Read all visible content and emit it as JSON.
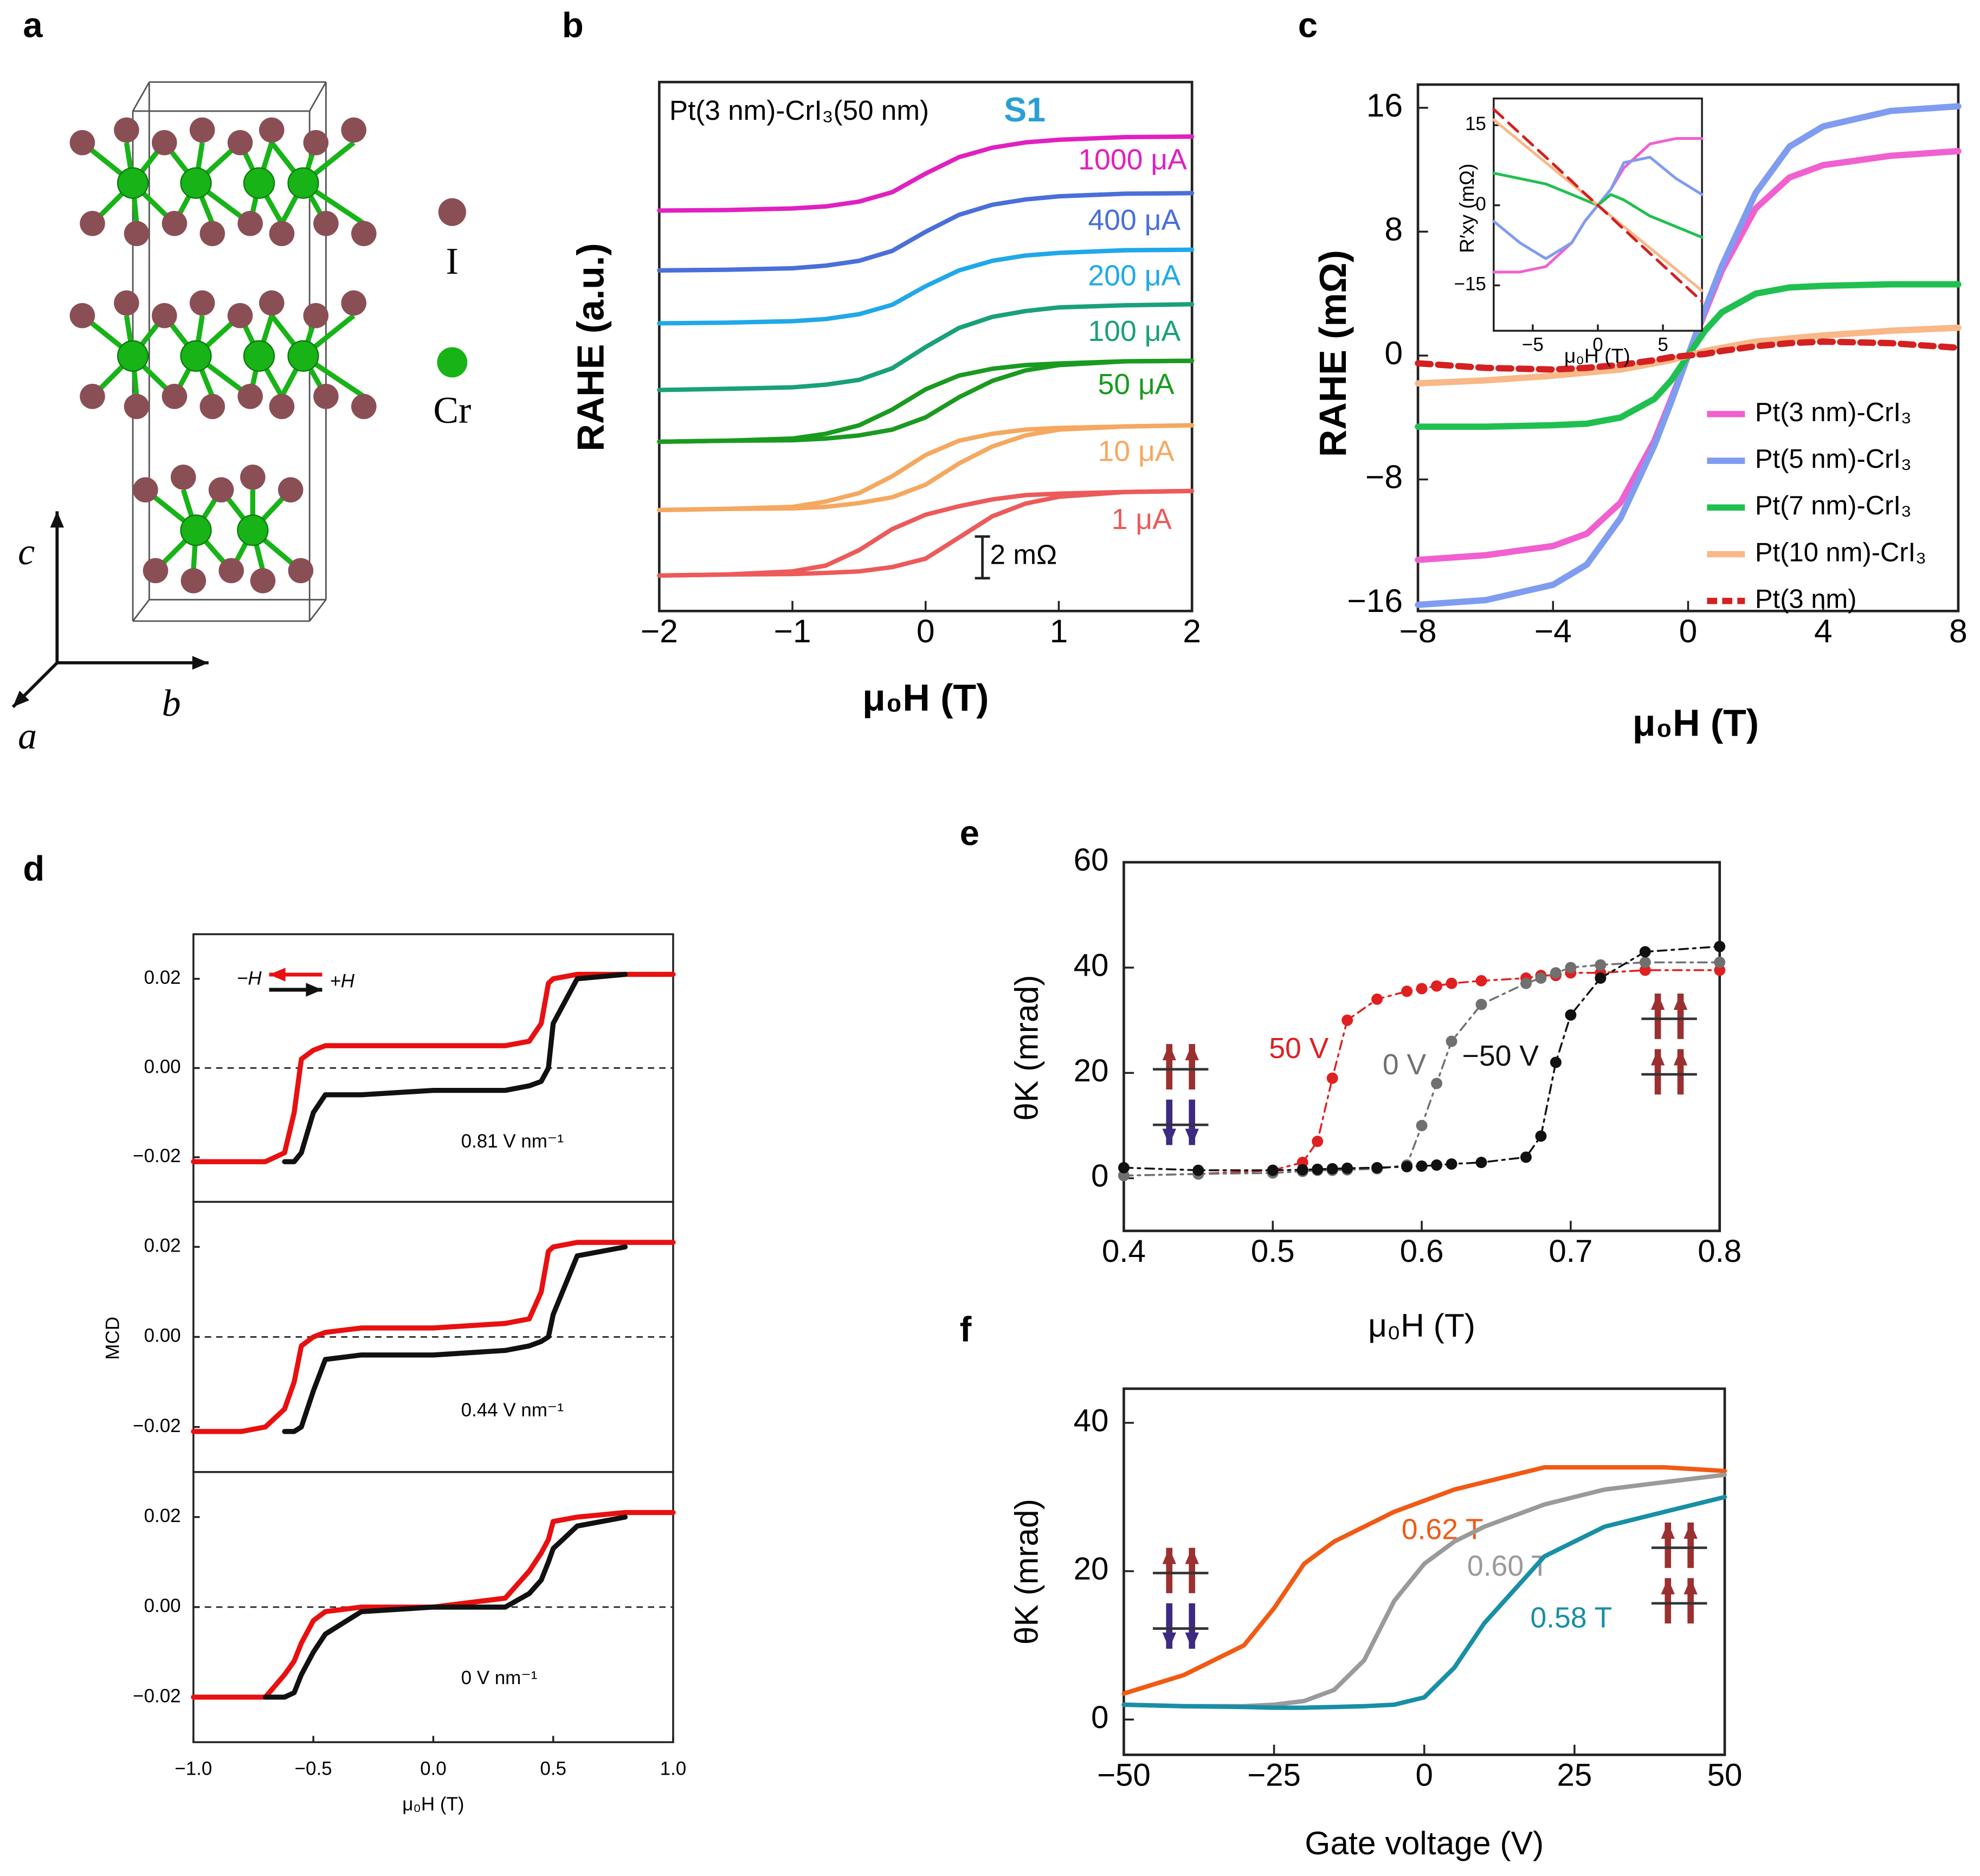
{
  "panel_labels": [
    "a",
    "b",
    "c",
    "d",
    "e",
    "f"
  ],
  "structure": {
    "atom_labels": [
      "I",
      "Cr"
    ],
    "axis_labels": [
      "c",
      "b",
      "a"
    ]
  },
  "chart_data": [
    {
      "type": "line",
      "title": "Pt(3 nm)-CrI₃(50 nm)",
      "sample_label": "S1",
      "sample_color": "#2a9fd6",
      "xlabel": "μ₀H (T)",
      "ylabel": "RAHE (a.u.)",
      "annotations": [
        "2 mΩ"
      ],
      "xlim": [
        -2,
        2
      ],
      "xticks": [
        {
          "value": -2,
          "label": "−2"
        },
        {
          "value": -1,
          "label": "−1"
        },
        0,
        1,
        2
      ],
      "ylim": [
        0,
        100
      ],
      "x": [
        -2,
        -1.5,
        -1,
        -0.75,
        -0.5,
        -0.25,
        0,
        0.25,
        0.5,
        0.75,
        1,
        1.5,
        2
      ],
      "series": [
        {
          "name": "1000 μA",
          "color": "#e020c0",
          "values": [
            75.7,
            75.8,
            76.1,
            76.5,
            77.4,
            79.2,
            82.7,
            85.8,
            87.6,
            88.6,
            89.1,
            89.6,
            89.7
          ]
        },
        {
          "name": "400 μA",
          "color": "#4a6fd8",
          "values": [
            64.4,
            64.5,
            64.8,
            65.3,
            66.2,
            68.1,
            71.7,
            74.9,
            76.8,
            77.8,
            78.4,
            78.9,
            79.0
          ]
        },
        {
          "name": "200 μA",
          "color": "#20a8e8",
          "values": [
            54.4,
            54.5,
            54.8,
            55.2,
            56.1,
            57.9,
            61.4,
            64.4,
            66.2,
            67.2,
            67.7,
            68.2,
            68.3
          ]
        },
        {
          "name": "100 μA",
          "color": "#1aa07a",
          "values": [
            41.8,
            42.0,
            42.3,
            42.8,
            43.7,
            45.9,
            49.9,
            53.5,
            55.6,
            56.7,
            57.4,
            57.8,
            58.0
          ]
        },
        {
          "name": "50 μA",
          "color": "#1a9a20",
          "values": [
            32.0,
            32.2,
            32.3,
            32.6,
            33.2,
            34.3,
            36.6,
            40.4,
            43.5,
            45.5,
            46.5,
            47.2,
            47.3
          ],
          "values_return": [
            32.0,
            32.2,
            32.6,
            33.5,
            35.1,
            38.1,
            41.9,
            44.5,
            45.8,
            46.5,
            46.8,
            47.2,
            47.3
          ]
        },
        {
          "name": "10 μA",
          "color": "#f5a860",
          "values": [
            19.1,
            19.3,
            19.4,
            19.7,
            20.4,
            21.5,
            23.9,
            27.9,
            31.1,
            33.2,
            34.3,
            34.9,
            35.1
          ],
          "values_return": [
            19.1,
            19.3,
            19.7,
            20.7,
            22.3,
            25.5,
            29.5,
            32.2,
            33.5,
            34.3,
            34.6,
            34.9,
            35.1
          ]
        },
        {
          "name": "1 μA",
          "color": "#ec5a5a",
          "values": [
            6.7,
            6.9,
            7.0,
            7.2,
            7.5,
            8.3,
            9.9,
            13.9,
            17.9,
            20.3,
            21.6,
            22.5,
            22.7
          ],
          "values_return": [
            6.7,
            6.9,
            7.5,
            8.6,
            11.5,
            15.5,
            18.2,
            19.8,
            21.1,
            21.9,
            22.2,
            22.5,
            22.7
          ]
        }
      ]
    },
    {
      "type": "line",
      "xlabel": "μ₀H (T)",
      "ylabel": "RAHE (mΩ)",
      "legend": "lower right",
      "xlim": [
        -8,
        8
      ],
      "xticks": [
        {
          "value": -8,
          "label": "−8"
        },
        {
          "value": -4,
          "label": "−4"
        },
        0,
        4,
        8
      ],
      "ylim": [
        -16.5,
        17.5
      ],
      "yticks": [
        {
          "value": -16,
          "label": "−16"
        },
        {
          "value": -8,
          "label": "−8"
        },
        0,
        8,
        16
      ],
      "x": [
        -8,
        -6,
        -4,
        -3,
        -2,
        -1,
        -0.5,
        0,
        0.5,
        1,
        2,
        3,
        4,
        6,
        8
      ],
      "series": [
        {
          "name": "Pt(3 nm)-CrI₃",
          "color": "#f060d0",
          "values": [
            -13.2,
            -12.9,
            -12.3,
            -11.5,
            -9.5,
            -5.5,
            -2.8,
            0,
            2.8,
            5.5,
            9.5,
            11.5,
            12.3,
            12.9,
            13.2
          ]
        },
        {
          "name": "Pt(5 nm)-CrI₃",
          "color": "#7f9cf0",
          "values": [
            -16.1,
            -15.8,
            -14.8,
            -13.5,
            -10.5,
            -5.8,
            -3.0,
            0,
            3.0,
            5.8,
            10.5,
            13.5,
            14.8,
            15.8,
            16.1
          ]
        },
        {
          "name": "Pt(7 nm)-CrI₃",
          "color": "#20c050",
          "values": [
            -4.6,
            -4.6,
            -4.5,
            -4.4,
            -4.0,
            -2.8,
            -1.6,
            0,
            1.6,
            2.8,
            4.0,
            4.4,
            4.5,
            4.6,
            4.6
          ]
        },
        {
          "name": "Pt(10 nm)-CrI₃",
          "color": "#f8b888",
          "values": [
            -1.8,
            -1.6,
            -1.3,
            -1.1,
            -0.9,
            -0.5,
            -0.3,
            0,
            0.3,
            0.5,
            0.9,
            1.1,
            1.3,
            1.6,
            1.8
          ]
        },
        {
          "name": "Pt(3 nm)",
          "color": "#d42020",
          "dash": true,
          "values": [
            -0.5,
            -0.8,
            -0.9,
            -0.8,
            -0.6,
            -0.3,
            -0.1,
            0,
            0.1,
            0.3,
            0.6,
            0.8,
            0.9,
            0.8,
            0.5
          ]
        }
      ]
    },
    {
      "type": "line",
      "xlabel": "μ₀H (T)",
      "ylabel": "R′xy (mΩ)",
      "xlim": [
        -8,
        8
      ],
      "xticks": [
        {
          "value": -5,
          "label": "−5"
        },
        0,
        5
      ],
      "ylim": [
        -23.5,
        20
      ],
      "yticks": [
        {
          "value": -15,
          "label": "−15"
        },
        0,
        15
      ],
      "x": [
        -8,
        -6,
        -4,
        -2,
        -1,
        0,
        1,
        2,
        4,
        6,
        8
      ],
      "series": [
        {
          "color": "#f060d0",
          "values": [
            -12.5,
            -12.5,
            -11.5,
            -7,
            -3,
            0,
            3,
            7,
            11.5,
            12.5,
            12.5
          ]
        },
        {
          "color": "#7f9cf0",
          "values": [
            -3,
            -7,
            -10,
            -7,
            -3,
            0,
            3,
            8,
            9,
            5,
            2
          ]
        },
        {
          "color": "#20c050",
          "values": [
            6,
            5,
            4,
            2,
            1,
            0,
            2,
            1,
            -2,
            -4,
            -6
          ]
        },
        {
          "color": "#f8b888",
          "values": [
            16,
            12,
            8,
            4,
            2,
            0,
            -2,
            -4,
            -8,
            -12,
            -16
          ]
        },
        {
          "color": "#d42020",
          "dash": true,
          "values": [
            18,
            13.5,
            9,
            4.5,
            2.2,
            0,
            -2.2,
            -4.5,
            -9,
            -13.5,
            -18
          ]
        }
      ]
    },
    {
      "type": "line",
      "annotations": [
        "0.81 V nm⁻¹"
      ],
      "legend": "upper left",
      "hline": 0,
      "xlim": [
        -1,
        1
      ],
      "ylim": [
        -0.03,
        0.03
      ],
      "yticks": [
        {
          "value": -0.02,
          "label": "−0.02"
        },
        {
          "value": 0,
          "label": "0.00"
        },
        0.02
      ],
      "x": [
        -1,
        -0.8,
        -0.7,
        -0.62,
        -0.58,
        -0.55,
        -0.5,
        -0.45,
        -0.3,
        0,
        0.3,
        0.4,
        0.45,
        0.48,
        0.5,
        0.6,
        0.8,
        1
      ],
      "series": [
        {
          "name": "−H",
          "color": "#e81010",
          "values": [
            -0.021,
            -0.021,
            -0.021,
            -0.019,
            -0.01,
            0.002,
            0.004,
            0.005,
            0.005,
            0.005,
            0.005,
            0.006,
            0.01,
            0.019,
            0.02,
            0.021,
            0.021,
            0.021
          ]
        },
        {
          "name": "+H",
          "color": "#111111",
          "values": [
            null,
            null,
            null,
            -0.021,
            -0.021,
            -0.019,
            -0.01,
            -0.006,
            -0.006,
            -0.005,
            -0.005,
            -0.004,
            -0.003,
            0,
            0.01,
            0.02,
            0.021,
            null
          ]
        }
      ]
    },
    {
      "type": "line",
      "annotations": [
        "0.44 V nm⁻¹"
      ],
      "ylabel": "MCD",
      "hline": 0,
      "xlim": [
        -1,
        1
      ],
      "ylim": [
        -0.03,
        0.03
      ],
      "yticks": [
        {
          "value": -0.02,
          "label": "−0.02"
        },
        {
          "value": 0,
          "label": "0.00"
        },
        0.02
      ],
      "x": [
        -1,
        -0.8,
        -0.7,
        -0.62,
        -0.58,
        -0.55,
        -0.5,
        -0.45,
        -0.3,
        0,
        0.3,
        0.4,
        0.45,
        0.48,
        0.5,
        0.6,
        0.8,
        1
      ],
      "series": [
        {
          "color": "#e81010",
          "values": [
            -0.021,
            -0.021,
            -0.02,
            -0.016,
            -0.01,
            -0.002,
            0,
            0.001,
            0.002,
            0.002,
            0.003,
            0.004,
            0.01,
            0.019,
            0.02,
            0.021,
            0.021,
            0.021
          ]
        },
        {
          "color": "#111111",
          "values": [
            null,
            null,
            null,
            -0.021,
            -0.021,
            -0.02,
            -0.012,
            -0.005,
            -0.004,
            -0.004,
            -0.003,
            -0.002,
            -0.001,
            0,
            0.005,
            0.018,
            0.02,
            null
          ]
        }
      ]
    },
    {
      "type": "line",
      "annotations": [
        "0 V nm⁻¹"
      ],
      "xlabel": "μ₀H (T)",
      "hline": 0,
      "xlim": [
        -1,
        1
      ],
      "xticks": [
        {
          "value": -1,
          "label": "−1.0"
        },
        {
          "value": -0.5,
          "label": "−0.5"
        },
        {
          "value": 0,
          "label": "0.0"
        },
        0.5,
        {
          "value": 1,
          "label": "1.0"
        }
      ],
      "ylim": [
        -0.03,
        0.03
      ],
      "yticks": [
        {
          "value": -0.02,
          "label": "−0.02"
        },
        {
          "value": 0,
          "label": "0.00"
        },
        0.02
      ],
      "x": [
        -1,
        -0.8,
        -0.7,
        -0.62,
        -0.58,
        -0.55,
        -0.5,
        -0.45,
        -0.3,
        0,
        0.3,
        0.4,
        0.45,
        0.48,
        0.5,
        0.6,
        0.8,
        1
      ],
      "series": [
        {
          "color": "#e81010",
          "values": [
            -0.02,
            -0.02,
            -0.02,
            -0.015,
            -0.012,
            -0.008,
            -0.003,
            -0.001,
            0,
            0,
            0.002,
            0.008,
            0.012,
            0.015,
            0.019,
            0.02,
            0.021,
            0.021
          ]
        },
        {
          "color": "#111111",
          "values": [
            null,
            null,
            -0.02,
            -0.02,
            -0.019,
            -0.015,
            -0.01,
            -0.006,
            -0.001,
            0,
            0,
            0.003,
            0.006,
            0.01,
            0.013,
            0.018,
            0.02,
            null
          ]
        }
      ]
    },
    {
      "type": "scatter",
      "xlabel": "μ₀H (T)",
      "ylabel": "θK (mrad)",
      "markers": true,
      "xlim": [
        0.4,
        0.8
      ],
      "xticks": [
        0.4,
        0.5,
        0.6,
        0.7,
        0.8
      ],
      "ylim": [
        -10,
        60
      ],
      "yticks": [
        0,
        20,
        40,
        60
      ],
      "x": [
        0.4,
        0.45,
        0.5,
        0.52,
        0.53,
        0.54,
        0.55,
        0.57,
        0.59,
        0.6,
        0.61,
        0.62,
        0.64,
        0.67,
        0.68,
        0.69,
        0.7,
        0.72,
        0.75,
        0.8
      ],
      "series": [
        {
          "name": "50 V",
          "color": "#e02020",
          "values": [
            0.5,
            0.8,
            1.5,
            3,
            7,
            19,
            30,
            34,
            35.5,
            36,
            36.5,
            37,
            37.5,
            38,
            38.5,
            38.5,
            39,
            39,
            39.5,
            39.5
          ]
        },
        {
          "name": "0 V",
          "color": "#707070",
          "values": [
            0.5,
            0.8,
            1,
            1.3,
            1.5,
            1.5,
            1.6,
            1.8,
            2.5,
            10,
            18,
            26,
            33,
            37,
            38,
            39,
            40,
            40.5,
            41,
            41
          ]
        },
        {
          "name": "−50 V",
          "color": "#111111",
          "values": [
            2,
            1.5,
            1.5,
            1.6,
            1.7,
            1.8,
            1.9,
            2,
            2.2,
            2.3,
            2.5,
            2.7,
            3,
            4,
            8,
            22,
            31,
            38,
            43,
            44
          ]
        }
      ]
    },
    {
      "type": "line",
      "xlabel": "Gate voltage (V)",
      "ylabel": "θK (mrad)",
      "xlim": [
        -50,
        50
      ],
      "xticks": [
        {
          "value": -50,
          "label": "−50"
        },
        {
          "value": -25,
          "label": "−25"
        },
        0,
        25,
        50
      ],
      "ylim": [
        -4.75,
        44.6
      ],
      "yticks": [
        0,
        20,
        40
      ],
      "x": [
        -50,
        -40,
        -30,
        -25,
        -20,
        -15,
        -10,
        -5,
        0,
        5,
        10,
        20,
        30,
        40,
        50
      ],
      "series": [
        {
          "name": "0.62 T",
          "color": "#f05a14",
          "values": [
            3.5,
            6,
            10,
            15,
            21,
            24,
            26,
            28,
            29.5,
            31,
            32,
            34,
            34,
            34,
            33.5
          ]
        },
        {
          "name": "0.60 T",
          "color": "#9a9a9a",
          "values": [
            2,
            1.8,
            1.8,
            2,
            2.5,
            4,
            8,
            16,
            21,
            24,
            26,
            29,
            31,
            32,
            33
          ]
        },
        {
          "name": "0.58 T",
          "color": "#188fa5",
          "values": [
            2,
            1.8,
            1.7,
            1.6,
            1.6,
            1.7,
            1.8,
            2,
            3,
            7,
            13,
            22,
            26,
            28,
            30
          ]
        }
      ]
    }
  ]
}
